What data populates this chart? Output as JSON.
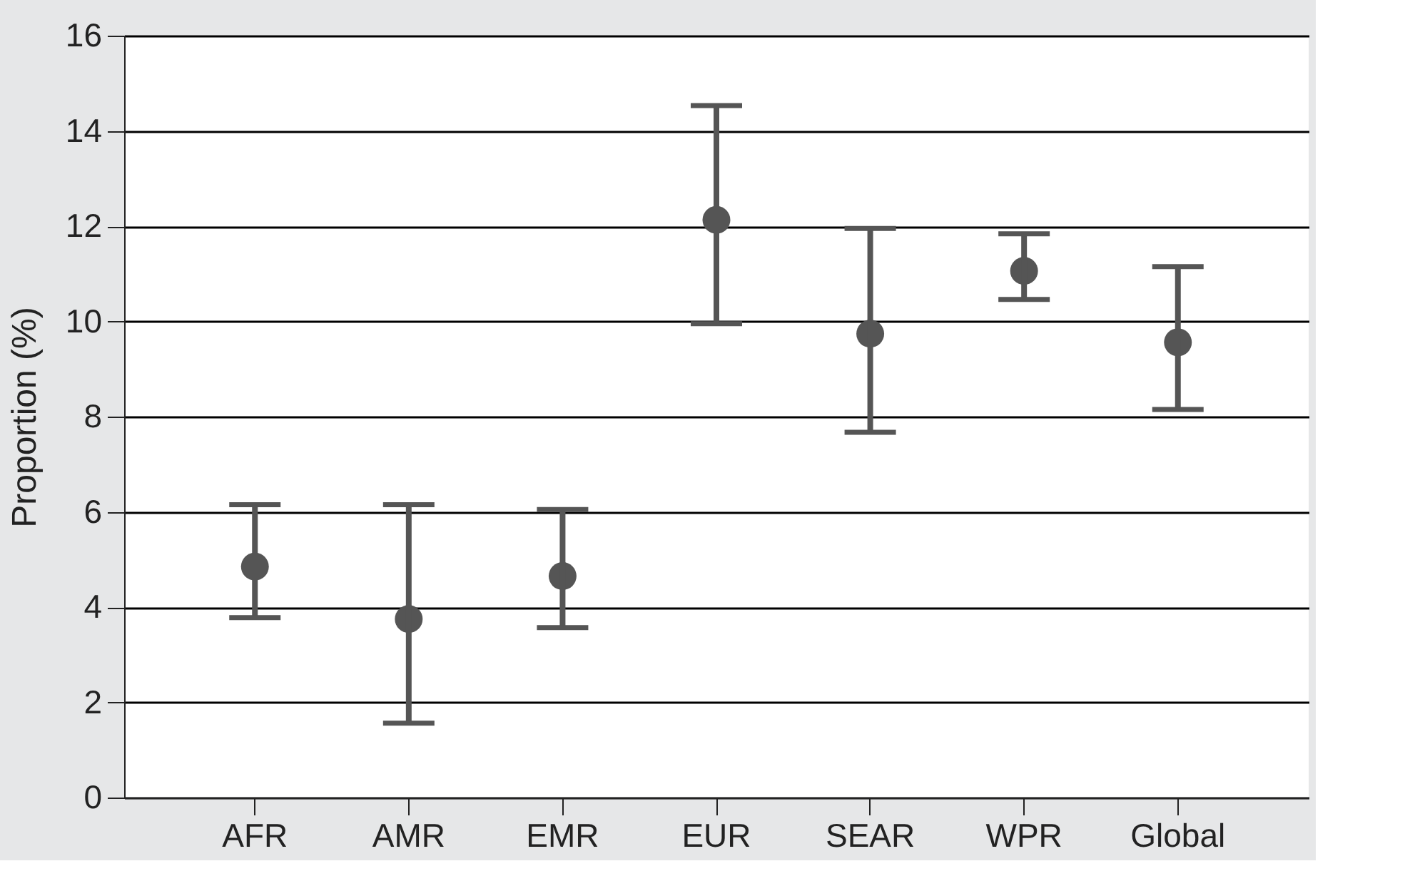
{
  "chart_data": {
    "type": "scatter",
    "ylabel": "Proportion (%)",
    "categories": [
      "AFR",
      "AMR",
      "EMR",
      "EUR",
      "SEAR",
      "WPR",
      "Global"
    ],
    "series": [
      {
        "color": "#555555",
        "values": [
          4.85,
          3.75,
          4.65,
          12.13,
          9.74,
          11.06,
          9.56
        ],
        "errors": [
          [
            3.78,
            6.15
          ],
          [
            1.56,
            6.15
          ],
          [
            3.57,
            6.05
          ],
          [
            9.95,
            14.53
          ],
          [
            7.67,
            11.95
          ],
          [
            10.46,
            11.84
          ],
          [
            8.15,
            11.15
          ]
        ]
      }
    ],
    "ylim": [
      0,
      16
    ],
    "yticks": [
      0,
      2,
      4,
      6,
      8,
      10,
      12,
      14,
      16
    ],
    "grid": "y",
    "marker": "circle"
  }
}
